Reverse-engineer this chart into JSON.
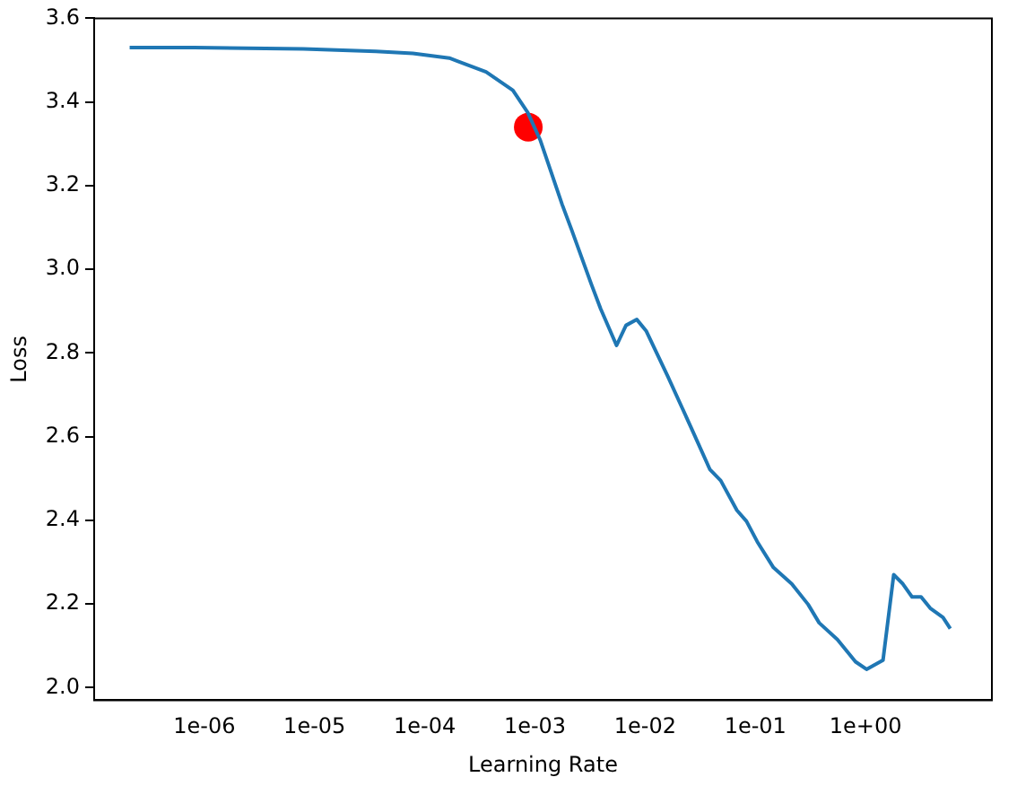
{
  "chart_data": {
    "type": "line",
    "xlabel": "Learning Rate",
    "ylabel": "Loss",
    "log": "x",
    "xlim": [
      1e-07,
      14
    ],
    "ylim": [
      1.97,
      3.6
    ],
    "xticks": [
      {
        "value": 1e-06,
        "label": "1e-06"
      },
      {
        "value": 1e-05,
        "label": "1e-05"
      },
      {
        "value": 0.0001,
        "label": "1e-04"
      },
      {
        "value": 0.001,
        "label": "1e-03"
      },
      {
        "value": 0.01,
        "label": "1e-02"
      },
      {
        "value": 0.1,
        "label": "1e-01"
      },
      {
        "value": 1,
        "label": "1e+00"
      }
    ],
    "yticks": [
      {
        "value": 2,
        "label": "2.0"
      },
      {
        "value": 2.2,
        "label": "2.2"
      },
      {
        "value": 2.4,
        "label": "2.4"
      },
      {
        "value": 2.6,
        "label": "2.6"
      },
      {
        "value": 2.8,
        "label": "2.8"
      },
      {
        "value": 3,
        "label": "3.0"
      },
      {
        "value": 3.2,
        "label": "3.2"
      },
      {
        "value": 3.4,
        "label": "3.4"
      },
      {
        "value": 3.6,
        "label": "3.6"
      }
    ],
    "grid": false,
    "legend": false,
    "series": [
      {
        "color": "#1f77b4",
        "marker": "none",
        "x": [
          2.1e-07,
          8.1e-07,
          7.9e-06,
          3.6e-05,
          7.8e-05,
          0.000167,
          0.00036,
          0.00063,
          0.00086,
          0.00112,
          0.00177,
          0.00214,
          0.00325,
          0.00394,
          0.0055,
          0.0067,
          0.0084,
          0.0102,
          0.0161,
          0.0264,
          0.0386,
          0.0485,
          0.068,
          0.083,
          0.104,
          0.146,
          0.214,
          0.301,
          0.379,
          0.555,
          0.81,
          1.02,
          1.44,
          1.8,
          2.18,
          2.64,
          3.19,
          3.86,
          5.04,
          5.87
        ],
        "values": [
          3.53,
          3.53,
          3.527,
          3.521,
          3.516,
          3.505,
          3.472,
          3.428,
          3.375,
          3.308,
          3.154,
          3.096,
          2.964,
          2.906,
          2.818,
          2.866,
          2.88,
          2.853,
          2.743,
          2.619,
          2.522,
          2.495,
          2.424,
          2.398,
          2.349,
          2.287,
          2.248,
          2.199,
          2.155,
          2.115,
          2.062,
          2.044,
          2.066,
          2.27,
          2.248,
          2.217,
          2.217,
          2.19,
          2.168,
          2.141
        ]
      },
      {
        "type": "scatter",
        "color": "#ff0000",
        "marker": "circle",
        "x": [
          0.00087
        ],
        "values": [
          3.34
        ]
      }
    ]
  }
}
